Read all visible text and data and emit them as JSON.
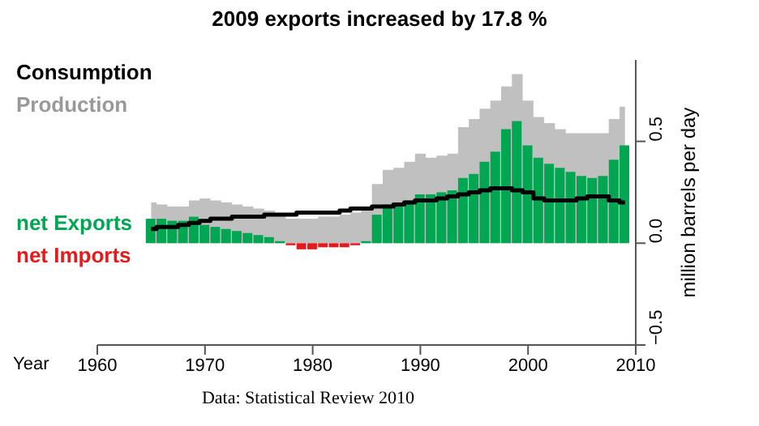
{
  "chart_data": {
    "type": "bar",
    "title": "2009 exports increased by 17.8 %",
    "xlabel": "Year",
    "ylabel": "million barrels per day",
    "annotations": [
      "Data: Statistical Review 2010"
    ],
    "x": [
      1965,
      1966,
      1967,
      1968,
      1969,
      1970,
      1971,
      1972,
      1973,
      1974,
      1975,
      1976,
      1977,
      1978,
      1979,
      1980,
      1981,
      1982,
      1983,
      1984,
      1985,
      1986,
      1987,
      1988,
      1989,
      1990,
      1991,
      1992,
      1993,
      1994,
      1995,
      1996,
      1997,
      1998,
      1999,
      2000,
      2001,
      2002,
      2003,
      2004,
      2005,
      2006,
      2007,
      2008,
      2009
    ],
    "series": [
      {
        "name": "Production",
        "type": "area",
        "color": "#c0c0c0",
        "values": [
          0.2,
          0.19,
          0.18,
          0.18,
          0.21,
          0.22,
          0.21,
          0.2,
          0.19,
          0.18,
          0.17,
          0.16,
          0.14,
          0.12,
          0.12,
          0.12,
          0.13,
          0.13,
          0.14,
          0.15,
          0.17,
          0.29,
          0.36,
          0.37,
          0.4,
          0.44,
          0.42,
          0.43,
          0.44,
          0.57,
          0.61,
          0.66,
          0.7,
          0.77,
          0.83,
          0.7,
          0.62,
          0.59,
          0.56,
          0.54,
          0.54,
          0.54,
          0.54,
          0.61,
          0.67
        ]
      },
      {
        "name": "net Exports",
        "color": "#00a651",
        "values": [
          0.12,
          0.12,
          0.11,
          0.11,
          0.13,
          0.09,
          0.08,
          0.07,
          0.06,
          0.05,
          0.04,
          0.03,
          0.01,
          null,
          null,
          null,
          null,
          null,
          null,
          null,
          0.01,
          0.14,
          0.19,
          0.2,
          0.21,
          0.24,
          0.24,
          0.25,
          0.26,
          0.32,
          0.34,
          0.4,
          0.45,
          0.56,
          0.6,
          0.48,
          0.42,
          0.39,
          0.37,
          0.35,
          0.33,
          0.32,
          0.33,
          0.41,
          0.48
        ]
      },
      {
        "name": "net Imports",
        "color": "#e41a1c",
        "values": [
          null,
          null,
          null,
          null,
          null,
          null,
          null,
          null,
          null,
          null,
          null,
          null,
          null,
          -0.01,
          -0.03,
          -0.03,
          -0.02,
          -0.02,
          -0.02,
          -0.01,
          null,
          null,
          null,
          null,
          null,
          null,
          null,
          null,
          null,
          null,
          null,
          null,
          null,
          null,
          null,
          null,
          null,
          null,
          null,
          null,
          null,
          null,
          null,
          null,
          null
        ]
      },
      {
        "name": "Consumption",
        "type": "step",
        "color": "#000000",
        "values": [
          0.07,
          0.08,
          0.08,
          0.09,
          0.1,
          0.11,
          0.12,
          0.12,
          0.13,
          0.13,
          0.13,
          0.14,
          0.14,
          0.14,
          0.15,
          0.15,
          0.15,
          0.15,
          0.16,
          0.17,
          0.17,
          0.18,
          0.18,
          0.19,
          0.2,
          0.21,
          0.21,
          0.22,
          0.23,
          0.24,
          0.25,
          0.26,
          0.27,
          0.27,
          0.26,
          0.25,
          0.22,
          0.21,
          0.21,
          0.21,
          0.22,
          0.23,
          0.23,
          0.21,
          0.2
        ]
      }
    ],
    "xlim": [
      1960,
      2010
    ],
    "xticks": [
      1960,
      1970,
      1980,
      1990,
      2000,
      2010
    ],
    "ylim": [
      -0.5,
      0.9
    ],
    "yticks": [
      {
        "value": -0.5,
        "label": "−0.5"
      },
      {
        "value": 0,
        "label": "0.0"
      },
      {
        "value": 0.5,
        "label": "0.5"
      }
    ],
    "legend": "left"
  }
}
